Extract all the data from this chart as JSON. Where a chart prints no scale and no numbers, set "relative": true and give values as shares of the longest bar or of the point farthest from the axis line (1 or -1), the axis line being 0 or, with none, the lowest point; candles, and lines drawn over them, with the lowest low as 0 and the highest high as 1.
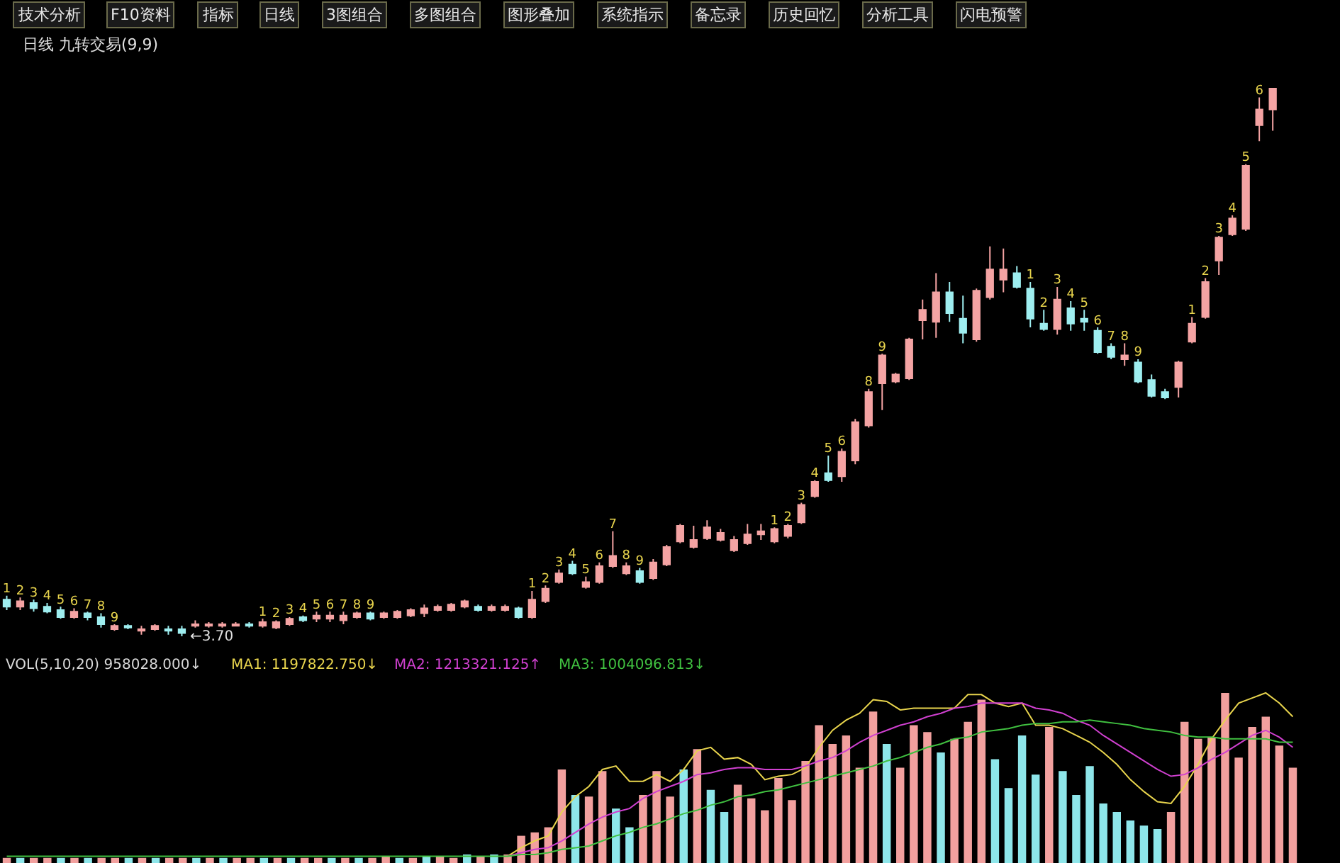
{
  "chart_data": [
    {
      "type": "candlestick",
      "title": "日线 九转交易(9,9)",
      "relative": true,
      "tick_labels": false,
      "categories": [
        null,
        null,
        null,
        null,
        null,
        null,
        null,
        null,
        null,
        null,
        null,
        null,
        null,
        null,
        null,
        null,
        null,
        null,
        null,
        null,
        null,
        null,
        null,
        null,
        null,
        null,
        null,
        null,
        null,
        null,
        null,
        null,
        null,
        null,
        null,
        null,
        null,
        null,
        null,
        null,
        null,
        null,
        null,
        null,
        null,
        null,
        null,
        null,
        null,
        null,
        null,
        null,
        null,
        null,
        null,
        null,
        null,
        null,
        null,
        null,
        null,
        null,
        null,
        null,
        null,
        null,
        null,
        null,
        null,
        null,
        null,
        null,
        null,
        null,
        null,
        null,
        null,
        null,
        null,
        null,
        null,
        null,
        null,
        null,
        null,
        null,
        null,
        null,
        null,
        null,
        null,
        null,
        null,
        null,
        null
      ],
      "ohlc": [
        [
          0.067,
          0.074,
          0.048,
          0.054
        ],
        [
          0.054,
          0.071,
          0.048,
          0.064
        ],
        [
          0.061,
          0.067,
          0.045,
          0.051
        ],
        [
          0.054,
          0.061,
          0.042,
          0.045
        ],
        [
          0.048,
          0.054,
          0.032,
          0.035
        ],
        [
          0.035,
          0.051,
          0.032,
          0.045
        ],
        [
          0.042,
          0.045,
          0.029,
          0.035
        ],
        [
          0.035,
          0.042,
          0.016,
          0.022
        ],
        [
          0.013,
          0.022,
          0.01,
          0.019
        ],
        [
          0.019,
          0.022,
          0.013,
          0.016
        ],
        [
          0.01,
          0.019,
          0.003,
          0.013
        ],
        [
          0.013,
          0.022,
          0.01,
          0.019
        ],
        [
          0.013,
          0.019,
          0.003,
          0.01
        ],
        [
          0.013,
          0.019,
          0,
          0.006
        ],
        [
          0.019,
          0.029,
          0.016,
          0.022
        ],
        [
          0.019,
          0.026,
          0.016,
          0.022
        ],
        [
          0.019,
          0.026,
          0.016,
          0.022
        ],
        [
          0.019,
          0.026,
          0.019,
          0.022
        ],
        [
          0.022,
          0.026,
          0.016,
          0.019
        ],
        [
          0.019,
          0.032,
          0.016,
          0.026
        ],
        [
          0.016,
          0.029,
          0.013,
          0.026
        ],
        [
          0.022,
          0.035,
          0.019,
          0.032
        ],
        [
          0.035,
          0.038,
          0.026,
          0.029
        ],
        [
          0.032,
          0.045,
          0.026,
          0.038
        ],
        [
          0.032,
          0.045,
          0.026,
          0.038
        ],
        [
          0.029,
          0.045,
          0.022,
          0.038
        ],
        [
          0.035,
          0.045,
          0.032,
          0.042
        ],
        [
          0.042,
          0.045,
          0.029,
          0.032
        ],
        [
          0.035,
          0.045,
          0.032,
          0.042
        ],
        [
          0.035,
          0.048,
          0.032,
          0.045
        ],
        [
          0.038,
          0.051,
          0.035,
          0.048
        ],
        [
          0.042,
          0.058,
          0.035,
          0.051
        ],
        [
          0.048,
          0.058,
          0.045,
          0.054
        ],
        [
          0.048,
          0.061,
          0.045,
          0.058
        ],
        [
          0.054,
          0.067,
          0.051,
          0.064
        ],
        [
          0.054,
          0.058,
          0.045,
          0.048
        ],
        [
          0.048,
          0.058,
          0.045,
          0.054
        ],
        [
          0.048,
          0.058,
          0.045,
          0.054
        ],
        [
          0.051,
          0.054,
          0.032,
          0.035
        ],
        [
          0.035,
          0.083,
          0.032,
          0.067
        ],
        [
          0.064,
          0.093,
          0.061,
          0.087
        ],
        [
          0.099,
          0.122,
          0.096,
          0.115
        ],
        [
          0.131,
          0.138,
          0.112,
          0.115
        ],
        [
          0.09,
          0.109,
          0.087,
          0.099
        ],
        [
          0.099,
          0.135,
          0.096,
          0.128
        ],
        [
          0.128,
          0.192,
          0.125,
          0.147
        ],
        [
          0.115,
          0.135,
          0.112,
          0.128
        ],
        [
          0.119,
          0.125,
          0.096,
          0.099
        ],
        [
          0.106,
          0.141,
          0.103,
          0.135
        ],
        [
          0.131,
          0.167,
          0.128,
          0.163
        ],
        [
          0.173,
          0.205,
          0.17,
          0.202
        ],
        [
          0.163,
          0.202,
          0.16,
          0.176
        ],
        [
          0.179,
          0.212,
          0.176,
          0.199
        ],
        [
          0.176,
          0.196,
          0.173,
          0.189
        ],
        [
          0.157,
          0.183,
          0.154,
          0.176
        ],
        [
          0.17,
          0.205,
          0.167,
          0.186
        ],
        [
          0.186,
          0.205,
          0.176,
          0.192
        ],
        [
          0.173,
          0.199,
          0.17,
          0.196
        ],
        [
          0.183,
          0.205,
          0.179,
          0.202
        ],
        [
          0.208,
          0.244,
          0.205,
          0.24
        ],
        [
          0.256,
          0.285,
          0.253,
          0.282
        ],
        [
          0.298,
          0.33,
          0.282,
          0.285
        ],
        [
          0.292,
          0.343,
          0.282,
          0.337
        ],
        [
          0.321,
          0.397,
          0.314,
          0.391
        ],
        [
          0.385,
          0.452,
          0.381,
          0.446
        ],
        [
          0.462,
          0.516,
          0.413,
          0.513
        ],
        [
          0.465,
          0.481,
          0.462,
          0.478
        ],
        [
          0.471,
          0.545,
          0.468,
          0.542
        ],
        [
          0.577,
          0.615,
          0.542,
          0.596
        ],
        [
          0.574,
          0.663,
          0.545,
          0.628
        ],
        [
          0.628,
          0.647,
          0.574,
          0.59
        ],
        [
          0.58,
          0.622,
          0.535,
          0.554
        ],
        [
          0.542,
          0.635,
          0.538,
          0.631
        ],
        [
          0.619,
          0.712,
          0.615,
          0.67
        ],
        [
          0.651,
          0.708,
          0.628,
          0.67
        ],
        [
          0.663,
          0.676,
          0.635,
          0.638
        ],
        [
          0.635,
          0.647,
          0.564,
          0.58
        ],
        [
          0.571,
          0.596,
          0.558,
          0.561
        ],
        [
          0.561,
          0.638,
          0.551,
          0.615
        ],
        [
          0.599,
          0.612,
          0.558,
          0.571
        ],
        [
          0.58,
          0.596,
          0.558,
          0.574
        ],
        [
          0.558,
          0.564,
          0.516,
          0.519
        ],
        [
          0.529,
          0.535,
          0.506,
          0.51
        ],
        [
          0.506,
          0.535,
          0.494,
          0.513
        ],
        [
          0.5,
          0.506,
          0.462,
          0.465
        ],
        [
          0.468,
          0.478,
          0.436,
          0.439
        ],
        [
          0.446,
          0.452,
          0.433,
          0.436
        ],
        [
          0.455,
          0.503,
          0.436,
          0.5
        ],
        [
          0.538,
          0.583,
          0.535,
          0.571
        ],
        [
          0.583,
          0.654,
          0.58,
          0.647
        ],
        [
          0.686,
          0.731,
          0.66,
          0.728
        ],
        [
          0.734,
          0.769,
          0.731,
          0.763
        ],
        [
          0.744,
          0.862,
          0.74,
          0.859
        ],
        [
          0.933,
          0.984,
          0.904,
          0.962
        ],
        [
          0.962,
          1,
          0.923,
          1
        ]
      ],
      "colors": [
        "#9eeef0",
        "#f4a3a3",
        "#9eeef0",
        "#9eeef0",
        "#9eeef0",
        "#f4a3a3",
        "#9eeef0",
        "#9eeef0",
        "#f4a3a3",
        "#9eeef0",
        "#f4a3a3",
        "#f4a3a3",
        "#9eeef0",
        "#9eeef0",
        "#f4a3a3",
        "#f4a3a3",
        "#f4a3a3",
        "#f4a3a3",
        "#9eeef0",
        "#f4a3a3",
        "#f4a3a3",
        "#f4a3a3",
        "#9eeef0",
        "#f4a3a3",
        "#f4a3a3",
        "#f4a3a3",
        "#f4a3a3",
        "#9eeef0",
        "#f4a3a3",
        "#f4a3a3",
        "#f4a3a3",
        "#f4a3a3",
        "#f4a3a3",
        "#f4a3a3",
        "#f4a3a3",
        "#9eeef0",
        "#f4a3a3",
        "#f4a3a3",
        "#9eeef0",
        "#f4a3a3",
        "#f4a3a3",
        "#f4a3a3",
        "#9eeef0",
        "#f4a3a3",
        "#f4a3a3",
        "#f4a3a3",
        "#f4a3a3",
        "#9eeef0",
        "#f4a3a3",
        "#f4a3a3",
        "#f4a3a3",
        "#f4a3a3",
        "#f4a3a3",
        "#f4a3a3",
        "#f4a3a3",
        "#f4a3a3",
        "#f4a3a3",
        "#f4a3a3",
        "#f4a3a3",
        "#f4a3a3",
        "#f4a3a3",
        "#9eeef0",
        "#f4a3a3",
        "#f4a3a3",
        "#f4a3a3",
        "#f4a3a3",
        "#f4a3a3",
        "#f4a3a3",
        "#f4a3a3",
        "#f4a3a3",
        "#9eeef0",
        "#9eeef0",
        "#f4a3a3",
        "#f4a3a3",
        "#f4a3a3",
        "#9eeef0",
        "#9eeef0",
        "#9eeef0",
        "#f4a3a3",
        "#9eeef0",
        "#9eeef0",
        "#9eeef0",
        "#9eeef0",
        "#f4a3a3",
        "#9eeef0",
        "#9eeef0",
        "#9eeef0",
        "#f4a3a3",
        "#f4a3a3",
        "#f4a3a3",
        "#f4a3a3",
        "#f4a3a3",
        "#f4a3a3",
        "#f4a3a3",
        "#f4a3a3"
      ],
      "value_labels": [
        "1",
        "2",
        "3",
        "4",
        "5",
        "6",
        "7",
        "8",
        "9",
        null,
        null,
        null,
        null,
        null,
        null,
        null,
        null,
        null,
        null,
        "1",
        "2",
        "3",
        "4",
        "5",
        "6",
        "7",
        "8",
        "9",
        null,
        null,
        null,
        null,
        null,
        null,
        null,
        null,
        null,
        null,
        null,
        "1",
        "2",
        "3",
        "4",
        "5",
        "6",
        "7",
        "8",
        "9",
        null,
        null,
        null,
        null,
        null,
        null,
        null,
        null,
        null,
        "1",
        "2",
        "3",
        "4",
        "5",
        "6",
        null,
        "8",
        "9",
        null,
        null,
        null,
        null,
        null,
        null,
        null,
        null,
        null,
        null,
        "1",
        "2",
        "3",
        "4",
        "5",
        "6",
        "7",
        "8",
        "9",
        null,
        null,
        null,
        "1",
        "2",
        "3",
        "4",
        "5",
        "6",
        null
      ],
      "annotations": [
        "←3.70",
        "技术分析",
        "F10资料",
        "指标",
        "日线",
        "3图组合",
        "多图组合",
        "图形叠加",
        "系统指示",
        "备忘录",
        "历史回忆",
        "分析工具",
        "闪电预警"
      ]
    },
    {
      "type": "bar",
      "relative": true,
      "tick_labels": false,
      "categories": [
        null,
        null,
        null,
        null,
        null,
        null,
        null,
        null,
        null,
        null,
        null,
        null,
        null,
        null,
        null,
        null,
        null,
        null,
        null,
        null,
        null,
        null,
        null,
        null,
        null,
        null,
        null,
        null,
        null,
        null,
        null,
        null,
        null,
        null,
        null,
        null,
        null,
        null,
        null,
        null,
        null,
        null,
        null,
        null,
        null,
        null,
        null,
        null,
        null,
        null,
        null,
        null,
        null,
        null,
        null,
        null,
        null,
        null,
        null,
        null,
        null,
        null,
        null,
        null,
        null,
        null,
        null,
        null,
        null,
        null,
        null,
        null,
        null,
        null,
        null,
        null,
        null,
        null,
        null,
        null,
        null,
        null,
        null,
        null,
        null,
        null,
        null,
        null,
        null,
        null,
        null,
        null,
        null,
        null,
        null,
        null
      ],
      "series": [
        {
          "name": "VOL(5,10,20) 958028.000↓",
          "values": [
            0.03,
            0.03,
            0.03,
            0.03,
            0.03,
            0.03,
            0.03,
            0.03,
            0.03,
            0.03,
            0.03,
            0.03,
            0.03,
            0.03,
            0.03,
            0.03,
            0.03,
            0.03,
            0.03,
            0.03,
            0.03,
            0.03,
            0.03,
            0.03,
            0.03,
            0.03,
            0.03,
            0.03,
            0.04,
            0.03,
            0.03,
            0.04,
            0.04,
            0.03,
            0.05,
            0.04,
            0.05,
            0.05,
            0.16,
            0.18,
            0.21,
            0.55,
            0.4,
            0.39,
            0.54,
            0.32,
            0.21,
            0.4,
            0.54,
            0.39,
            0.55,
            0.67,
            0.43,
            0.3,
            0.46,
            0.38,
            0.31,
            0.5,
            0.37,
            0.6,
            0.81,
            0.7,
            0.75,
            0.56,
            0.89,
            0.7,
            0.56,
            0.81,
            0.77,
            0.65,
            0.73,
            0.83,
            0.96,
            0.61,
            0.44,
            0.75,
            0.52,
            0.8,
            0.54,
            0.4,
            0.57,
            0.35,
            0.3,
            0.25,
            0.22,
            0.2,
            0.3,
            0.83,
            0.73,
            0.74,
            1.0,
            0.62,
            0.8,
            0.86,
            0.69,
            0.56
          ],
          "colors": [
            "#f2a09e",
            "#8ee6ea",
            "#f2a09e",
            "#f2a09e",
            "#8ee6ea",
            "#f2a09e",
            "#8ee6ea",
            "#f2a09e",
            "#f2a09e",
            "#8ee6ea",
            "#f2a09e",
            "#8ee6ea",
            "#f2a09e",
            "#f2a09e",
            "#8ee6ea",
            "#f2a09e",
            "#8ee6ea",
            "#f2a09e",
            "#f2a09e",
            "#8ee6ea",
            "#f2a09e",
            "#8ee6ea",
            "#f2a09e",
            "#f2a09e",
            "#8ee6ea",
            "#f2a09e",
            "#8ee6ea",
            "#f2a09e",
            "#f2a09e",
            "#8ee6ea",
            "#f2a09e",
            "#8ee6ea",
            "#f2a09e",
            "#f2a09e",
            "#8ee6ea",
            "#f2a09e",
            "#8ee6ea",
            "#f2a09e",
            "#f2a09e",
            "#f2a09e",
            "#f2a09e",
            "#f2a09e",
            "#8ee6ea",
            "#f2a09e",
            "#f2a09e",
            "#8ee6ea",
            "#8ee6ea",
            "#f2a09e",
            "#f2a09e",
            "#f2a09e",
            "#8ee6ea",
            "#f2a09e",
            "#8ee6ea",
            "#8ee6ea",
            "#f2a09e",
            "#f2a09e",
            "#f2a09e",
            "#f2a09e",
            "#f2a09e",
            "#f2a09e",
            "#f2a09e",
            "#f2a09e",
            "#f2a09e",
            "#f2a09e",
            "#f2a09e",
            "#8ee6ea",
            "#f2a09e",
            "#f2a09e",
            "#f2a09e",
            "#8ee6ea",
            "#f2a09e",
            "#f2a09e",
            "#f2a09e",
            "#8ee6ea",
            "#8ee6ea",
            "#8ee6ea",
            "#8ee6ea",
            "#f2a09e",
            "#8ee6ea",
            "#8ee6ea",
            "#8ee6ea",
            "#8ee6ea",
            "#8ee6ea",
            "#8ee6ea",
            "#8ee6ea",
            "#8ee6ea",
            "#f2a09e",
            "#f2a09e",
            "#f2a09e",
            "#f2a09e",
            "#f2a09e",
            "#f2a09e",
            "#f2a09e",
            "#f2a09e",
            "#f2a09e",
            "#f2a09e"
          ]
        }
      ]
    },
    {
      "type": "line",
      "relative": true,
      "tick_labels": false,
      "categories": [
        null,
        null,
        null,
        null,
        null,
        null,
        null,
        null,
        null,
        null,
        null,
        null,
        null,
        null,
        null,
        null,
        null,
        null,
        null,
        null,
        null,
        null,
        null,
        null,
        null,
        null,
        null,
        null,
        null,
        null,
        null,
        null,
        null,
        null,
        null,
        null,
        null,
        null,
        null,
        null,
        null,
        null,
        null,
        null,
        null,
        null,
        null,
        null,
        null,
        null,
        null,
        null,
        null,
        null,
        null,
        null,
        null,
        null,
        null,
        null,
        null,
        null,
        null,
        null,
        null,
        null,
        null,
        null,
        null,
        null,
        null,
        null,
        null,
        null,
        null,
        null,
        null,
        null,
        null,
        null,
        null,
        null,
        null,
        null,
        null,
        null,
        null,
        null,
        null,
        null,
        null,
        null,
        null,
        null,
        null,
        null
      ],
      "series": [
        {
          "name": "MA1: 1197822.750↓",
          "color": "#e8d44d",
          "values": [
            null,
            null,
            null,
            null,
            null,
            null,
            null,
            null,
            null,
            null,
            null,
            null,
            null,
            null,
            null,
            null,
            null,
            null,
            null,
            null,
            null,
            null,
            null,
            null,
            null,
            null,
            null,
            null,
            null,
            null,
            null,
            null,
            null,
            null,
            null,
            null,
            null,
            0.04,
            0.09,
            0.13,
            0.16,
            0.3,
            0.39,
            0.45,
            0.55,
            0.57,
            0.48,
            0.48,
            0.52,
            0.48,
            0.55,
            0.66,
            0.68,
            0.61,
            0.62,
            0.58,
            0.49,
            0.51,
            0.52,
            0.56,
            0.68,
            0.78,
            0.84,
            0.88,
            0.96,
            0.95,
            0.9,
            0.91,
            0.91,
            0.91,
            0.91,
            0.99,
            0.99,
            0.94,
            0.92,
            0.94,
            0.81,
            0.81,
            0.79,
            0.75,
            0.71,
            0.65,
            0.58,
            0.49,
            0.42,
            0.36,
            0.35,
            0.45,
            0.58,
            0.73,
            0.84,
            0.94,
            0.97,
            1,
            0.94,
            0.86
          ]
        },
        {
          "name": "MA2: 1213321.125↑",
          "color": "#d040d0",
          "values": [
            null,
            null,
            null,
            null,
            null,
            null,
            null,
            null,
            null,
            null,
            null,
            null,
            null,
            null,
            null,
            null,
            null,
            null,
            null,
            null,
            null,
            null,
            null,
            null,
            null,
            null,
            null,
            null,
            null,
            null,
            null,
            null,
            null,
            null,
            null,
            null,
            null,
            0.04,
            0.06,
            0.08,
            0.09,
            0.13,
            0.18,
            0.23,
            0.27,
            0.3,
            0.32,
            0.38,
            0.42,
            0.45,
            0.48,
            0.52,
            0.53,
            0.55,
            0.56,
            0.56,
            0.55,
            0.55,
            0.55,
            0.57,
            0.6,
            0.62,
            0.66,
            0.71,
            0.75,
            0.78,
            0.81,
            0.83,
            0.86,
            0.88,
            0.91,
            0.92,
            0.94,
            0.94,
            0.94,
            0.94,
            0.91,
            0.9,
            0.88,
            0.84,
            0.81,
            0.75,
            0.7,
            0.65,
            0.6,
            0.55,
            0.51,
            0.52,
            0.56,
            0.61,
            0.65,
            0.7,
            0.75,
            0.78,
            0.74,
            0.68
          ]
        },
        {
          "name": "MA3: 1004096.813↓",
          "color": "#40c040",
          "values": [
            0.04,
            0.04,
            0.04,
            0.04,
            0.04,
            0.04,
            0.04,
            0.04,
            0.04,
            0.04,
            0.04,
            0.04,
            0.04,
            0.04,
            0.04,
            0.04,
            0.04,
            0.04,
            0.04,
            0.04,
            0.04,
            0.04,
            0.04,
            0.04,
            0.04,
            0.04,
            0.04,
            0.04,
            0.04,
            0.04,
            0.04,
            0.04,
            0.04,
            0.04,
            0.04,
            0.04,
            0.04,
            0.04,
            0.05,
            0.05,
            0.06,
            0.08,
            0.09,
            0.1,
            0.13,
            0.16,
            0.18,
            0.21,
            0.23,
            0.26,
            0.29,
            0.31,
            0.34,
            0.36,
            0.39,
            0.4,
            0.42,
            0.43,
            0.45,
            0.47,
            0.49,
            0.51,
            0.53,
            0.55,
            0.57,
            0.6,
            0.62,
            0.65,
            0.68,
            0.7,
            0.73,
            0.74,
            0.77,
            0.78,
            0.79,
            0.81,
            0.82,
            0.82,
            0.83,
            0.83,
            0.84,
            0.83,
            0.82,
            0.81,
            0.79,
            0.78,
            0.77,
            0.75,
            0.74,
            0.74,
            0.73,
            0.73,
            0.73,
            0.73,
            0.71,
            0.71
          ]
        }
      ]
    }
  ]
}
